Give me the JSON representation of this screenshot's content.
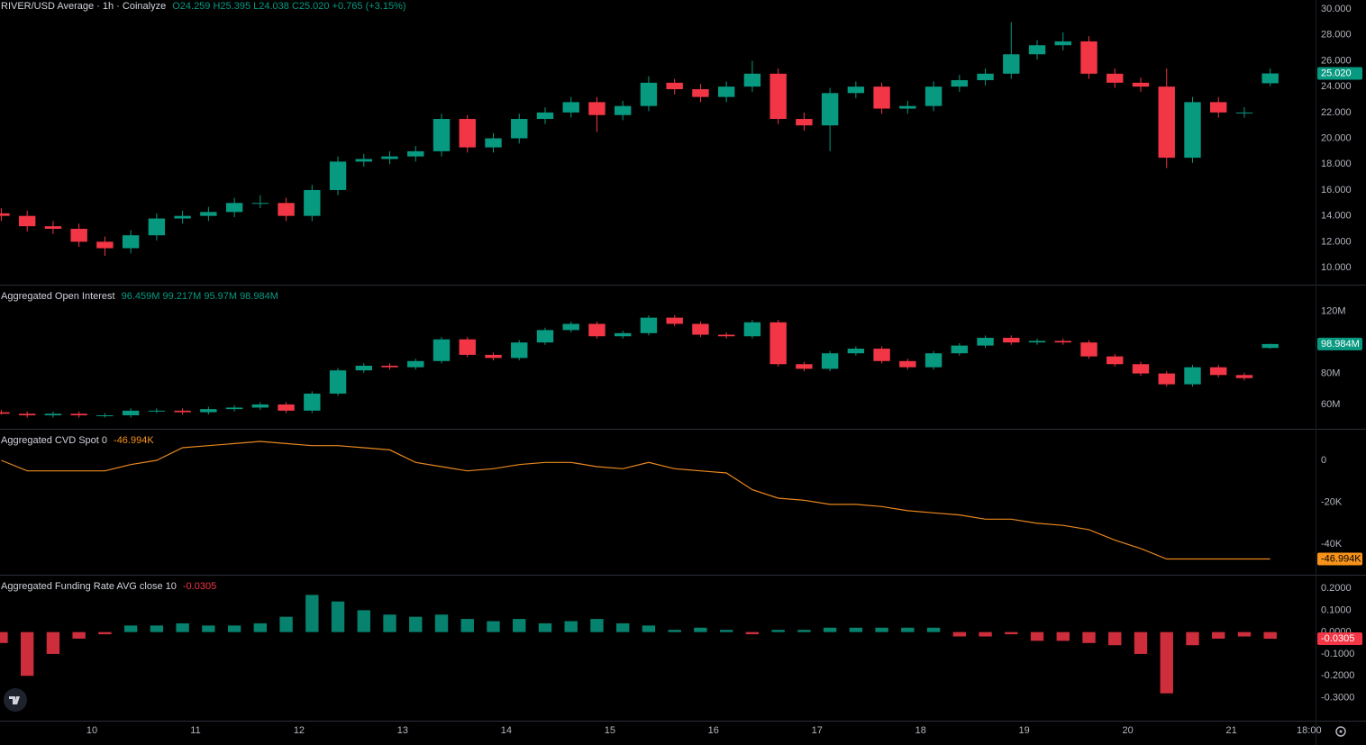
{
  "chart_data": [
    {
      "type": "candlestick",
      "title": "RIVER/USD Average · 1h · Coinalyze",
      "header_values": "O24.259 H25.395 L24.038 C25.020 +0.765 (+3.15%)",
      "header_color": "#089981",
      "x": [
        -21,
        -15,
        -9,
        -3,
        3,
        9,
        15,
        21,
        27,
        33,
        39,
        45,
        51,
        57,
        63,
        69,
        75,
        81,
        87,
        93,
        99,
        105,
        111,
        117,
        123,
        129,
        135,
        141,
        147,
        153,
        159,
        165,
        171,
        177,
        183,
        189,
        195,
        201,
        207,
        213,
        219,
        225,
        231,
        237,
        243,
        249,
        255,
        261,
        267,
        273
      ],
      "open": [
        14.2,
        14.0,
        13.2,
        13.0,
        12.0,
        11.5,
        12.5,
        13.8,
        14.0,
        14.3,
        15.0,
        15.0,
        14.0,
        16.0,
        18.2,
        18.4,
        18.6,
        19.0,
        21.5,
        19.3,
        20.0,
        21.5,
        22.0,
        22.8,
        21.8,
        22.5,
        24.3,
        23.8,
        23.2,
        24.0,
        25.0,
        21.5,
        21.0,
        23.5,
        24.0,
        22.3,
        22.5,
        24.0,
        24.5,
        25.0,
        26.5,
        27.2,
        27.5,
        25.0,
        24.3,
        24.0,
        18.5,
        22.8,
        22.0,
        24.259
      ],
      "high": [
        14.6,
        14.4,
        13.6,
        13.4,
        12.4,
        12.9,
        14.2,
        14.4,
        14.7,
        15.4,
        15.6,
        15.4,
        16.4,
        18.6,
        18.8,
        19.0,
        19.4,
        21.9,
        21.8,
        20.4,
        21.9,
        22.4,
        23.2,
        23.2,
        22.9,
        24.8,
        24.6,
        24.2,
        24.4,
        26.0,
        25.4,
        22.0,
        23.9,
        24.4,
        24.3,
        22.9,
        24.4,
        24.9,
        25.4,
        29.0,
        27.6,
        28.2,
        27.9,
        25.4,
        24.7,
        25.4,
        23.2,
        23.2,
        22.4,
        25.395
      ],
      "low": [
        13.6,
        12.8,
        12.6,
        11.6,
        10.9,
        11.1,
        12.1,
        13.4,
        13.6,
        13.9,
        14.6,
        13.6,
        13.6,
        15.6,
        17.8,
        18.0,
        18.2,
        18.6,
        18.9,
        18.9,
        19.6,
        21.1,
        21.6,
        20.5,
        21.4,
        22.1,
        23.4,
        22.8,
        22.8,
        23.6,
        21.1,
        20.6,
        19.0,
        23.1,
        21.9,
        21.9,
        22.1,
        23.6,
        24.1,
        24.6,
        26.1,
        26.8,
        24.6,
        23.9,
        23.6,
        17.7,
        18.1,
        21.6,
        21.6,
        24.038
      ],
      "close": [
        14.0,
        13.2,
        13.0,
        12.0,
        11.5,
        12.5,
        13.8,
        14.0,
        14.3,
        15.0,
        15.0,
        14.0,
        16.0,
        18.2,
        18.4,
        18.6,
        19.0,
        21.5,
        19.3,
        20.0,
        21.5,
        22.0,
        22.8,
        21.8,
        22.5,
        24.3,
        23.8,
        23.2,
        24.0,
        25.0,
        21.5,
        21.0,
        23.5,
        24.0,
        22.3,
        22.5,
        24.0,
        24.5,
        25.0,
        26.5,
        27.2,
        27.5,
        25.0,
        24.3,
        24.0,
        18.5,
        22.8,
        22.0,
        22.0,
        25.02
      ],
      "up_color": "#089981",
      "down_color": "#f23645",
      "badge_color": "#089981",
      "xlim": [
        -21.3,
        283.5
      ],
      "ylim": [
        8.68,
        30.7
      ],
      "yticks": [
        {
          "value": 10,
          "label": "10.000"
        },
        {
          "value": 12,
          "label": "12.000"
        },
        {
          "value": 14,
          "label": "14.000"
        },
        {
          "value": 16,
          "label": "16.000"
        },
        {
          "value": 18,
          "label": "18.000"
        },
        {
          "value": 20,
          "label": "20.000"
        },
        {
          "value": 22,
          "label": "22.000"
        },
        {
          "value": 24,
          "label": "24.000"
        },
        {
          "value": 26,
          "label": "26.000"
        },
        {
          "value": 28,
          "label": "28.000"
        },
        {
          "value": 30,
          "label": "30.000"
        }
      ],
      "last_label": "25.020"
    },
    {
      "type": "candlestick",
      "title": "Aggregated Open Interest",
      "header_values": "96.459M  99.217M  95.97M  98.984M",
      "header_color": "#089981",
      "x": [
        -21,
        -15,
        -9,
        -3,
        3,
        9,
        15,
        21,
        27,
        33,
        39,
        45,
        51,
        57,
        63,
        69,
        75,
        81,
        87,
        93,
        99,
        105,
        111,
        117,
        123,
        129,
        135,
        141,
        147,
        153,
        159,
        165,
        171,
        177,
        183,
        189,
        195,
        201,
        207,
        213,
        219,
        225,
        231,
        237,
        243,
        249,
        255,
        261,
        267,
        273
      ],
      "open": [
        55,
        54,
        53,
        54,
        53,
        53,
        56,
        56,
        55,
        57,
        58,
        60,
        56,
        67,
        82,
        85,
        84,
        88,
        102,
        92,
        90,
        100,
        108,
        112,
        104,
        106,
        116,
        112,
        105,
        104,
        113,
        86,
        83,
        93,
        96,
        88,
        84,
        93,
        98,
        103,
        100,
        101,
        100,
        91,
        86,
        80,
        73,
        84,
        79,
        96.459
      ],
      "high": [
        56.5,
        55.5,
        55.5,
        55.5,
        54.5,
        57.5,
        57.5,
        57.5,
        58.5,
        59.5,
        61.5,
        61.5,
        68.5,
        83.5,
        86.5,
        86.5,
        89.5,
        103.5,
        103.5,
        93.5,
        101.5,
        109.5,
        113.5,
        113.5,
        107.5,
        117.5,
        117.5,
        113.5,
        106.5,
        114.5,
        114.5,
        87.5,
        94.5,
        97.5,
        97.5,
        89.5,
        94.5,
        99.5,
        104.5,
        104.5,
        102.5,
        102.5,
        101.5,
        92.5,
        87.5,
        81.5,
        85.5,
        85.5,
        80.5,
        99.217
      ],
      "low": [
        53.5,
        51.5,
        51.5,
        51.5,
        51.5,
        51.5,
        54.5,
        53.5,
        53.5,
        55.5,
        56.5,
        54.5,
        54.5,
        65.5,
        80.5,
        82.5,
        82.5,
        86.5,
        90.5,
        88.5,
        88.5,
        98.5,
        106.5,
        102.5,
        102.5,
        104.5,
        110.5,
        103.5,
        102.5,
        102.5,
        84.5,
        81.5,
        81.5,
        91.5,
        86.5,
        82.5,
        82.5,
        91.5,
        96.5,
        98.5,
        98.5,
        98.5,
        89.5,
        84.5,
        78.5,
        71.5,
        71.5,
        77.5,
        75.5,
        95.97
      ],
      "close": [
        54,
        53,
        54,
        53,
        53,
        56,
        56,
        55,
        57,
        58,
        60,
        56,
        67,
        82,
        85,
        84,
        88,
        102,
        92,
        90,
        100,
        108,
        112,
        104,
        106,
        116,
        112,
        105,
        104,
        113,
        86,
        83,
        93,
        96,
        88,
        84,
        93,
        98,
        103,
        100,
        101,
        100,
        91,
        86,
        80,
        73,
        84,
        79,
        77,
        98.984
      ],
      "up_color": "#089981",
      "down_color": "#f23645",
      "badge_color": "#089981",
      "xlim": [
        -21.3,
        283.5
      ],
      "ylim": [
        44.3,
        136.7
      ],
      "yticks": [
        {
          "value": 60,
          "label": "60M"
        },
        {
          "value": 80,
          "label": "80M"
        },
        {
          "value": 120,
          "label": "120M"
        }
      ],
      "last_label": "98.984M"
    },
    {
      "type": "line",
      "title": "Aggregated CVD Spot 0",
      "header_values": "-46.994K",
      "header_color": "#f7931a",
      "x": [
        -21,
        -15,
        -9,
        -3,
        3,
        9,
        15,
        21,
        27,
        33,
        39,
        45,
        51,
        57,
        63,
        69,
        75,
        81,
        87,
        93,
        99,
        105,
        111,
        117,
        123,
        129,
        135,
        141,
        147,
        153,
        159,
        165,
        171,
        177,
        183,
        189,
        195,
        201,
        207,
        213,
        219,
        225,
        231,
        237,
        243,
        249,
        255,
        261,
        267,
        273
      ],
      "values": [
        0,
        -5,
        -5,
        -5,
        -5,
        -2,
        0,
        6,
        7,
        8,
        9,
        8,
        7,
        7,
        6,
        5,
        -1,
        -3,
        -5,
        -4,
        -2,
        -1,
        -1,
        -3,
        -4,
        -1,
        -4,
        -5,
        -6,
        -14,
        -18,
        -19,
        -21,
        -21,
        -22,
        -24,
        -25,
        -26,
        -28,
        -28,
        -30,
        -31,
        -33,
        -38,
        -42,
        -47,
        -47,
        -47,
        -47,
        -46.994
      ],
      "color": "#e8871e",
      "badge_color": "#f7931a",
      "xlim": [
        -21.3,
        283.5
      ],
      "ylim": [
        -54.5,
        14.6
      ],
      "yticks": [
        0,
        {
          "value": -20,
          "label": "-20K"
        },
        {
          "value": -40,
          "label": "-40K"
        }
      ],
      "last_label": "-46.994K"
    },
    {
      "type": "bar",
      "title": "Aggregated Funding Rate AVG close 10",
      "header_values": "-0.0305",
      "header_color": "#f23645",
      "x": [
        -21,
        -15,
        -9,
        -3,
        3,
        9,
        15,
        21,
        27,
        33,
        39,
        45,
        51,
        57,
        63,
        69,
        75,
        81,
        87,
        93,
        99,
        105,
        111,
        117,
        123,
        129,
        135,
        141,
        147,
        153,
        159,
        165,
        171,
        177,
        183,
        189,
        195,
        201,
        207,
        213,
        219,
        225,
        231,
        237,
        243,
        249,
        255,
        261,
        267,
        273
      ],
      "values": [
        -0.05,
        -0.2,
        -0.1,
        -0.03,
        -0.01,
        0.03,
        0.03,
        0.04,
        0.03,
        0.03,
        0.04,
        0.07,
        0.17,
        0.14,
        0.1,
        0.08,
        0.07,
        0.08,
        0.06,
        0.05,
        0.06,
        0.04,
        0.05,
        0.06,
        0.04,
        0.03,
        0.01,
        0.02,
        0.01,
        -0.01,
        0.01,
        0.01,
        0.02,
        0.02,
        0.02,
        0.02,
        0.02,
        -0.02,
        -0.02,
        -0.01,
        -0.04,
        -0.04,
        -0.05,
        -0.06,
        -0.1,
        -0.28,
        -0.06,
        -0.03,
        -0.02,
        -0.0305
      ],
      "up_color": "#089981",
      "down_color": "#f23645",
      "badge_color": "#f23645",
      "xlim": [
        -21.3,
        283.5
      ],
      "ylim": [
        -0.405,
        0.258
      ],
      "yticks": [
        {
          "value": 0.2,
          "label": "0.2000"
        },
        {
          "value": 0.1,
          "label": "0.1000"
        },
        {
          "value": 0,
          "label": "0.0000"
        },
        {
          "value": -0.1,
          "label": "-0.1000"
        },
        {
          "value": -0.2,
          "label": "-0.2000"
        },
        {
          "value": -0.3,
          "label": "-0.3000"
        }
      ],
      "xticks": [
        {
          "value": 0,
          "label": "10"
        },
        {
          "value": 24,
          "label": "11"
        },
        {
          "value": 48,
          "label": "12"
        },
        {
          "value": 72,
          "label": "13"
        },
        {
          "value": 96,
          "label": "14"
        },
        {
          "value": 120,
          "label": "15"
        },
        {
          "value": 144,
          "label": "16"
        },
        {
          "value": 168,
          "label": "17"
        },
        {
          "value": 192,
          "label": "18"
        },
        {
          "value": 216,
          "label": "19"
        },
        {
          "value": 240,
          "label": "20"
        },
        {
          "value": 264,
          "label": "21"
        },
        {
          "value": 282,
          "label": "18:00"
        }
      ],
      "last_label": "-0.0305"
    }
  ]
}
